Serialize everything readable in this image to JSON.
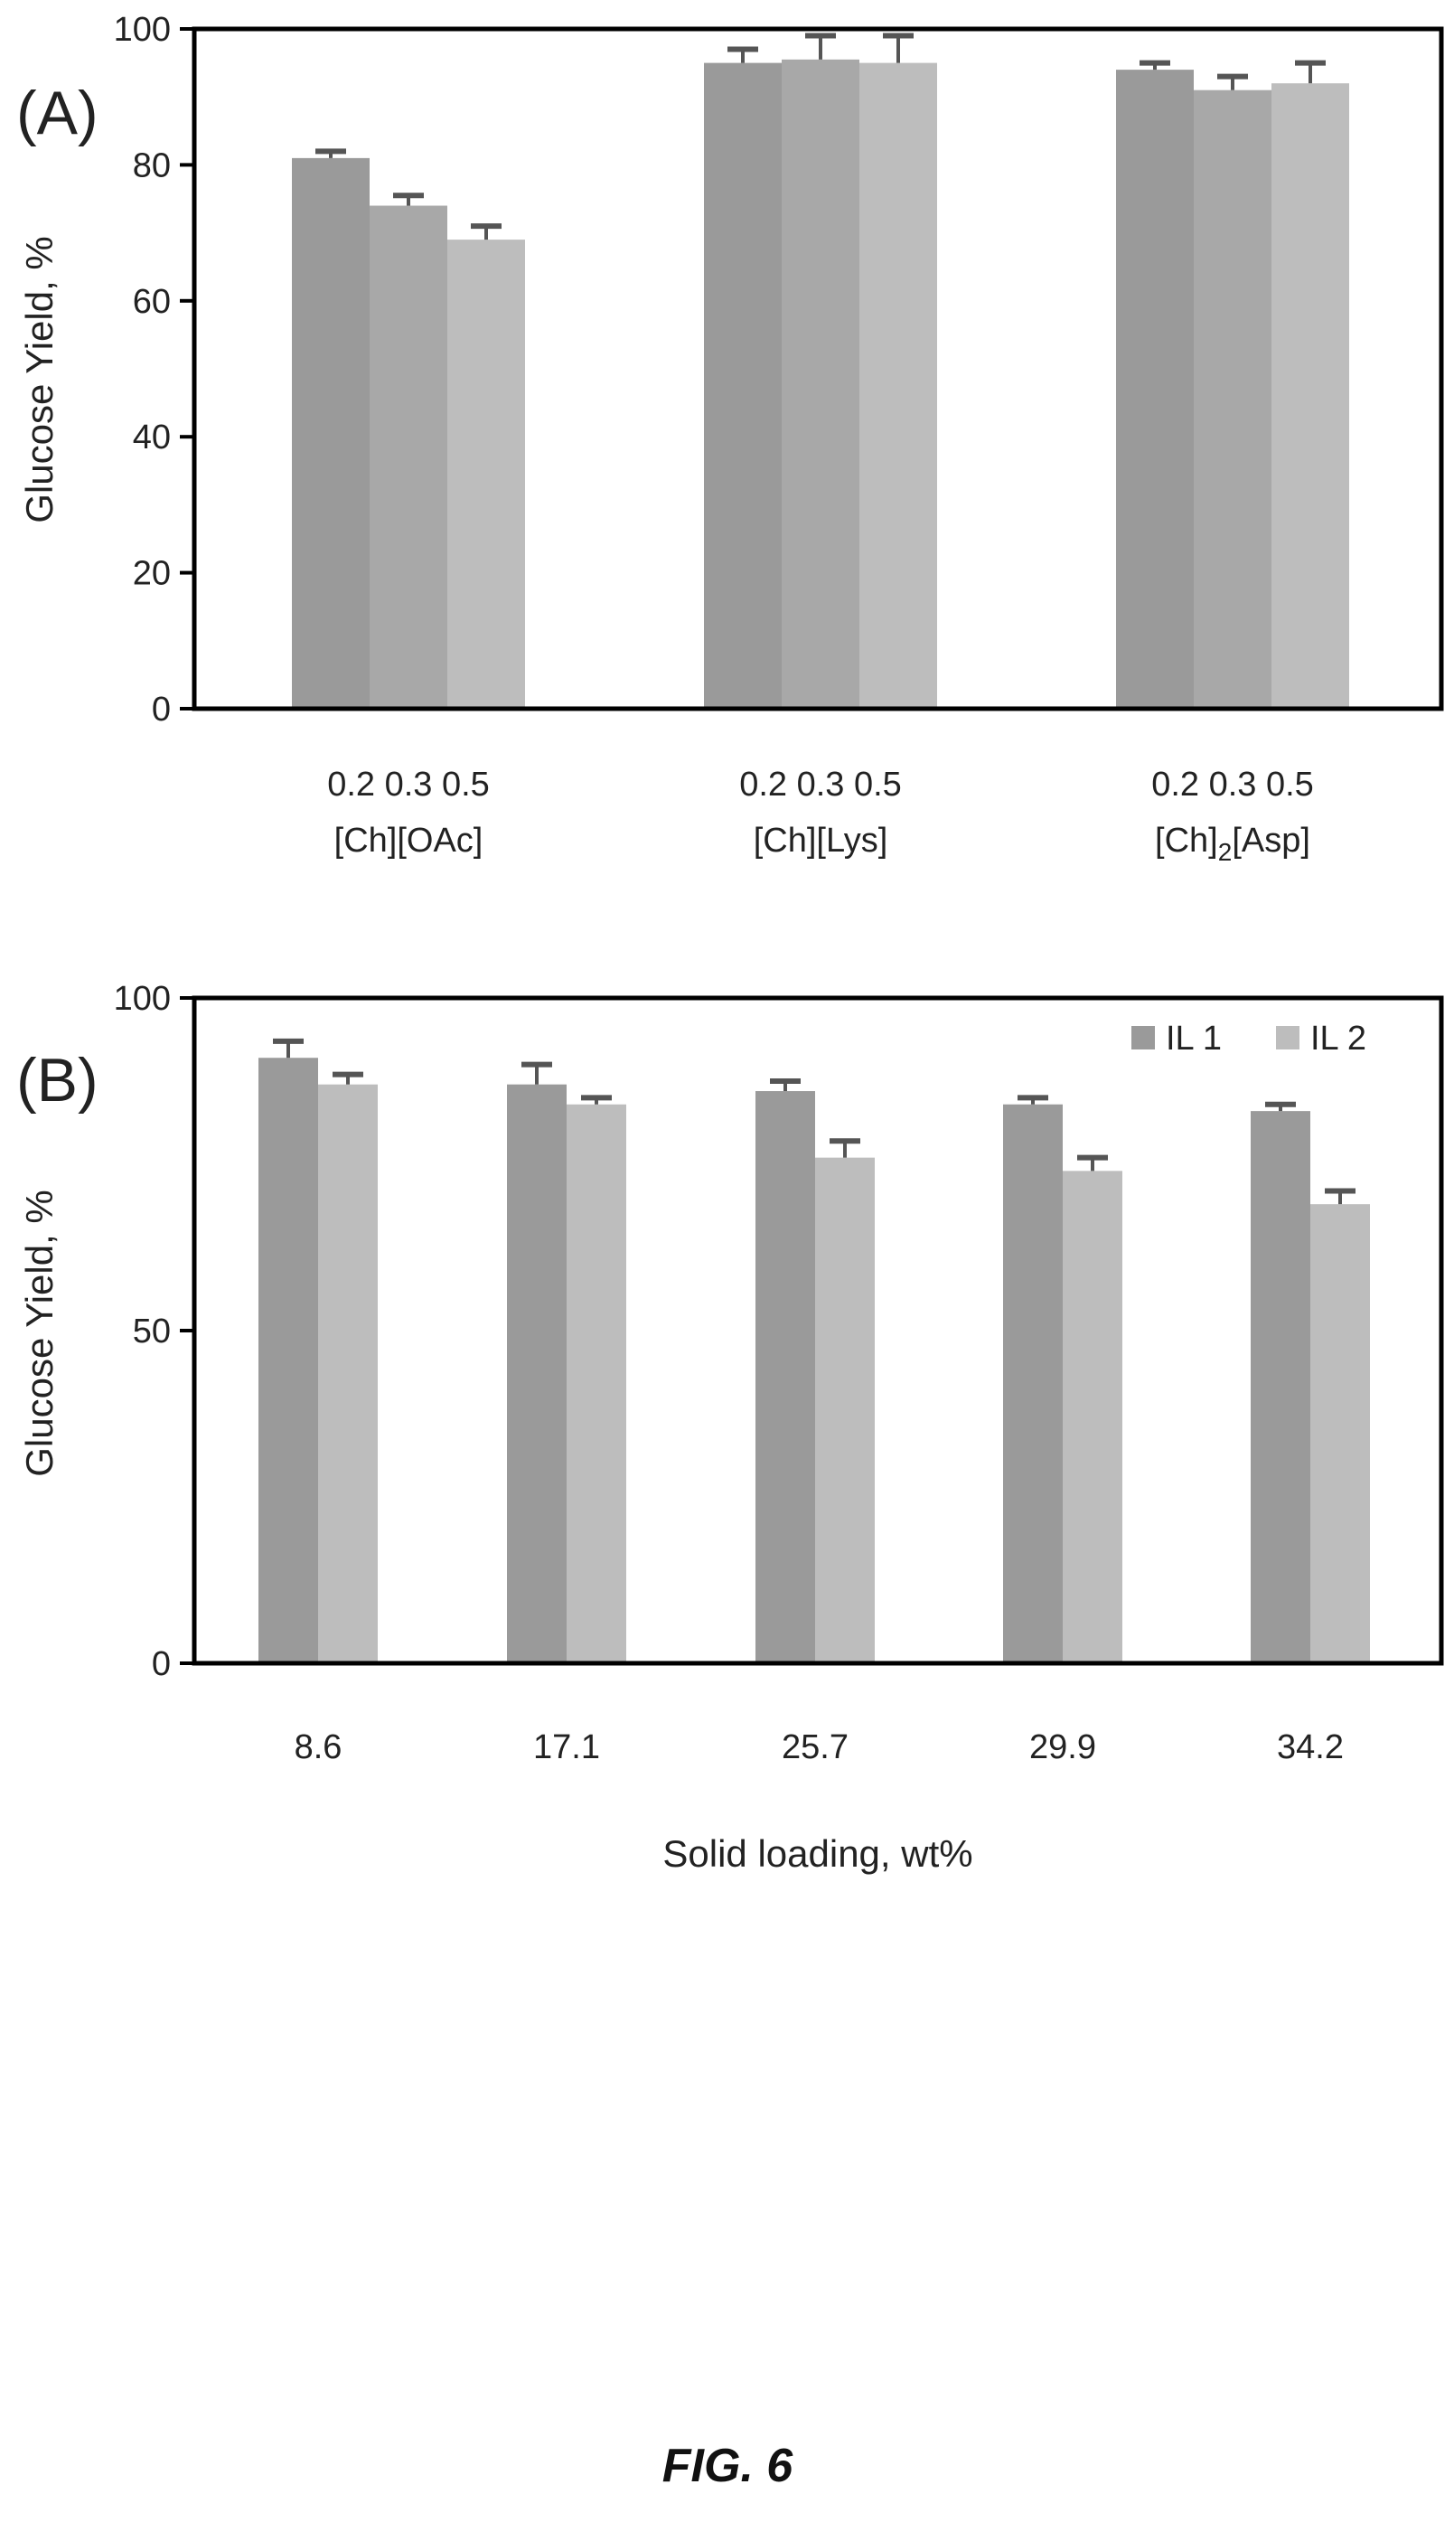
{
  "figure_caption": "FIG. 6",
  "colors": {
    "bar_dark": "#9a9a9a",
    "bar_light": "#bdbdbd",
    "axis": "#000000",
    "error_bar": "#555555"
  },
  "chart_data": [
    {
      "panel_label": "(A)",
      "type": "bar",
      "ylabel": "Glucose Yield, %",
      "ylim": [
        0,
        100
      ],
      "yticks": [
        0,
        20,
        40,
        60,
        80,
        100
      ],
      "groups": [
        {
          "tick_line": "0.2 0.3 0.5",
          "label_main": "[Ch][OAc]",
          "label_sub": "",
          "label_tail": "",
          "bars": [
            {
              "x": "0.2",
              "value": 81,
              "error": 1
            },
            {
              "x": "0.3",
              "value": 74,
              "error": 1.5
            },
            {
              "x": "0.5",
              "value": 69,
              "error": 2
            }
          ]
        },
        {
          "tick_line": "0.2 0.3 0.5",
          "label_main": "[Ch][Lys]",
          "label_sub": "",
          "label_tail": "",
          "bars": [
            {
              "x": "0.2",
              "value": 95,
              "error": 2
            },
            {
              "x": "0.3",
              "value": 95.5,
              "error": 3.5
            },
            {
              "x": "0.5",
              "value": 95,
              "error": 4
            }
          ]
        },
        {
          "tick_line": "0.2 0.3 0.5",
          "label_main": "[Ch]",
          "label_sub": "2",
          "label_tail": "[Asp]",
          "bars": [
            {
              "x": "0.2",
              "value": 94,
              "error": 1
            },
            {
              "x": "0.3",
              "value": 91,
              "error": 2
            },
            {
              "x": "0.5",
              "value": 92,
              "error": 3
            }
          ]
        }
      ]
    },
    {
      "panel_label": "(B)",
      "type": "bar",
      "xlabel": "Solid loading, wt%",
      "ylabel": "Glucose Yield, %",
      "ylim": [
        0,
        100
      ],
      "yticks": [
        0,
        50,
        100
      ],
      "categories": [
        "8.6",
        "17.1",
        "25.7",
        "29.9",
        "34.2"
      ],
      "legend_position": "top-right",
      "series": [
        {
          "name": "IL 1",
          "values": [
            91,
            87,
            86,
            84,
            83
          ],
          "errors": [
            2.5,
            3,
            1.5,
            1,
            1
          ]
        },
        {
          "name": "IL 2",
          "values": [
            87,
            84,
            76,
            74,
            69
          ],
          "errors": [
            1.5,
            1,
            2.5,
            2,
            2
          ]
        }
      ]
    }
  ]
}
